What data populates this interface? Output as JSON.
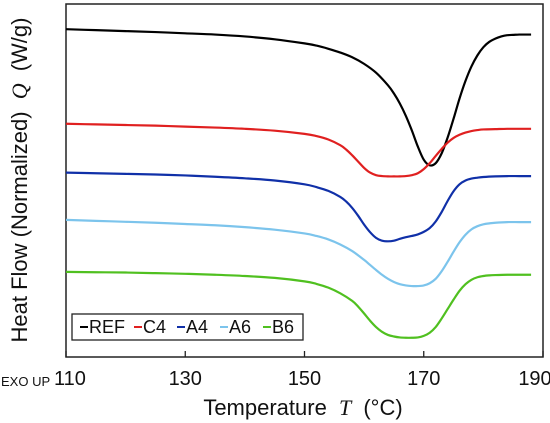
{
  "chart_data": {
    "type": "line",
    "xlabel_prefix": "Temperature",
    "xlabel_symbol": "T",
    "xlabel_unit": "(°C)",
    "ylabel_prefix": "Heat Flow (Normalized)",
    "ylabel_symbol": "Q",
    "ylabel_unit": "(W/g)",
    "corner_note": "EXO UP",
    "xlim": [
      110,
      190
    ],
    "x_ticks": [
      110,
      130,
      150,
      170,
      190
    ],
    "y_ticks_shown": false,
    "grid": false,
    "legend_position": "bottom-left",
    "series": [
      {
        "name": "REF",
        "color": "#000000",
        "x": [
          110,
          115,
          120,
          125,
          130,
          135,
          140,
          145,
          150,
          152,
          154,
          156,
          158,
          160,
          162,
          164,
          165,
          166,
          167,
          168,
          169,
          170,
          171,
          172,
          173,
          174,
          175,
          176,
          177,
          178,
          179,
          180,
          181,
          182,
          183,
          184,
          185,
          186,
          187,
          188
        ],
        "y": [
          1.0,
          0.997,
          0.994,
          0.991,
          0.987,
          0.983,
          0.977,
          0.968,
          0.955,
          0.948,
          0.938,
          0.926,
          0.911,
          0.89,
          0.862,
          0.822,
          0.796,
          0.764,
          0.725,
          0.679,
          0.628,
          0.586,
          0.568,
          0.575,
          0.606,
          0.656,
          0.716,
          0.78,
          0.836,
          0.882,
          0.917,
          0.943,
          0.96,
          0.97,
          0.977,
          0.981,
          0.982,
          0.983,
          0.983,
          0.983
        ]
      },
      {
        "name": "C4",
        "color": "#e02020",
        "x": [
          110,
          115,
          120,
          125,
          130,
          135,
          140,
          145,
          150,
          152,
          154,
          156,
          157,
          158,
          159,
          160,
          161,
          162,
          163,
          164,
          165,
          166,
          167,
          168,
          169,
          170,
          171,
          172,
          173,
          174,
          175,
          176,
          177,
          178,
          179,
          180,
          182,
          184,
          186,
          188
        ],
        "y": [
          0.7,
          0.698,
          0.696,
          0.694,
          0.691,
          0.688,
          0.684,
          0.678,
          0.668,
          0.661,
          0.65,
          0.632,
          0.618,
          0.6,
          0.58,
          0.56,
          0.545,
          0.537,
          0.534,
          0.533,
          0.533,
          0.533,
          0.534,
          0.537,
          0.543,
          0.556,
          0.575,
          0.598,
          0.62,
          0.64,
          0.655,
          0.665,
          0.672,
          0.677,
          0.68,
          0.682,
          0.683,
          0.684,
          0.684,
          0.684
        ]
      },
      {
        "name": "A4",
        "color": "#1030a8",
        "x": [
          110,
          115,
          120,
          125,
          130,
          135,
          140,
          145,
          150,
          152,
          154,
          156,
          157,
          158,
          159,
          160,
          161,
          162,
          163,
          164,
          165,
          166,
          167,
          168,
          169,
          170,
          171,
          172,
          173,
          174,
          175,
          176,
          177,
          178,
          179,
          180,
          182,
          184,
          186,
          188
        ],
        "y": [
          0.545,
          0.543,
          0.541,
          0.539,
          0.536,
          0.532,
          0.527,
          0.52,
          0.508,
          0.499,
          0.487,
          0.468,
          0.453,
          0.433,
          0.408,
          0.38,
          0.356,
          0.338,
          0.329,
          0.327,
          0.329,
          0.335,
          0.34,
          0.344,
          0.349,
          0.357,
          0.369,
          0.39,
          0.42,
          0.455,
          0.486,
          0.508,
          0.52,
          0.526,
          0.529,
          0.531,
          0.533,
          0.534,
          0.534,
          0.534
        ]
      },
      {
        "name": "A6",
        "color": "#7cc4ec",
        "x": [
          110,
          115,
          120,
          125,
          130,
          135,
          140,
          145,
          150,
          152,
          154,
          156,
          158,
          160,
          161,
          162,
          163,
          164,
          165,
          166,
          167,
          168,
          169,
          170,
          171,
          172,
          173,
          174,
          175,
          176,
          177,
          178,
          179,
          180,
          181,
          182,
          184,
          186,
          188
        ],
        "y": [
          0.395,
          0.392,
          0.389,
          0.386,
          0.382,
          0.378,
          0.372,
          0.364,
          0.352,
          0.344,
          0.333,
          0.317,
          0.296,
          0.268,
          0.252,
          0.236,
          0.221,
          0.208,
          0.198,
          0.191,
          0.187,
          0.185,
          0.185,
          0.187,
          0.194,
          0.208,
          0.232,
          0.262,
          0.294,
          0.324,
          0.348,
          0.365,
          0.375,
          0.381,
          0.384,
          0.386,
          0.388,
          0.388,
          0.388
        ]
      },
      {
        "name": "B6",
        "color": "#50c020",
        "x": [
          110,
          115,
          120,
          125,
          130,
          135,
          140,
          145,
          150,
          152,
          154,
          156,
          158,
          159,
          160,
          161,
          162,
          163,
          164,
          165,
          166,
          167,
          168,
          169,
          170,
          171,
          172,
          173,
          174,
          175,
          176,
          177,
          178,
          179,
          180,
          181,
          182,
          184,
          186,
          188
        ],
        "y": [
          0.23,
          0.229,
          0.228,
          0.226,
          0.224,
          0.221,
          0.217,
          0.211,
          0.2,
          0.192,
          0.18,
          0.162,
          0.138,
          0.12,
          0.098,
          0.075,
          0.055,
          0.04,
          0.03,
          0.025,
          0.022,
          0.021,
          0.021,
          0.022,
          0.027,
          0.037,
          0.055,
          0.082,
          0.112,
          0.142,
          0.17,
          0.191,
          0.205,
          0.213,
          0.217,
          0.219,
          0.22,
          0.221,
          0.221,
          0.221
        ]
      }
    ]
  }
}
